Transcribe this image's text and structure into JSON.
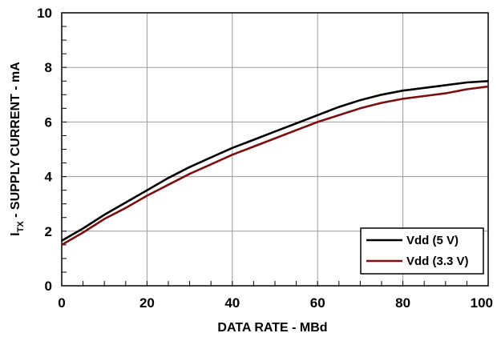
{
  "chart_data": {
    "type": "line",
    "xlabel": "DATA RATE - MBd",
    "ylabel_main": "I",
    "ylabel_sub": "TX",
    "ylabel_rest": " - SUPPLY CURRENT - mA",
    "xlim": [
      0,
      100
    ],
    "ylim": [
      0,
      10
    ],
    "x_ticks": [
      "0",
      "20",
      "40",
      "60",
      "80",
      "100"
    ],
    "y_ticks": [
      "0",
      "2",
      "4",
      "6",
      "8",
      "10"
    ],
    "grid": true,
    "legend_position": "bottom-right",
    "series": [
      {
        "name": "Vdd (5 V)",
        "color": "#000000",
        "x": [
          0,
          5,
          10,
          15,
          20,
          25,
          30,
          35,
          40,
          45,
          50,
          55,
          60,
          65,
          70,
          75,
          80,
          85,
          90,
          95,
          100
        ],
        "y": [
          1.65,
          2.1,
          2.6,
          3.05,
          3.5,
          3.95,
          4.35,
          4.7,
          5.05,
          5.35,
          5.65,
          5.95,
          6.25,
          6.55,
          6.8,
          7.0,
          7.15,
          7.25,
          7.35,
          7.45,
          7.5
        ]
      },
      {
        "name": "Vdd (3.3 V)",
        "color": "#7a0f0f",
        "x": [
          0,
          5,
          10,
          15,
          20,
          25,
          30,
          35,
          40,
          45,
          50,
          55,
          60,
          65,
          70,
          75,
          80,
          85,
          90,
          95,
          100
        ],
        "y": [
          1.5,
          1.95,
          2.45,
          2.85,
          3.3,
          3.7,
          4.1,
          4.45,
          4.8,
          5.1,
          5.4,
          5.7,
          6.0,
          6.25,
          6.5,
          6.7,
          6.85,
          6.95,
          7.05,
          7.2,
          7.3
        ]
      }
    ]
  }
}
